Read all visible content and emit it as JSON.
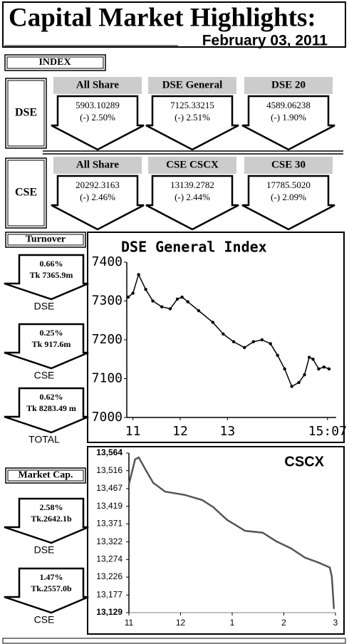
{
  "header": {
    "title": "Capital Market Highlights:",
    "date": "February 03, 2011"
  },
  "index": {
    "label": "INDEX",
    "groups": [
      {
        "label": "DSE",
        "items": [
          {
            "name": "All Share",
            "value": "5903.10289",
            "change": "(-) 2.50%"
          },
          {
            "name": "DSE General",
            "value": "7125.33215",
            "change": "(-) 2.51%"
          },
          {
            "name": "DSE 20",
            "value": "4589.06238",
            "change": "(-) 1.90%"
          }
        ]
      },
      {
        "label": "CSE",
        "items": [
          {
            "name": "All Share",
            "value": "20292.3163",
            "change": "(-) 2.46%"
          },
          {
            "name": "CSE CSCX",
            "value": "13139.2782",
            "change": "(-) 2.44%"
          },
          {
            "name": "CSE 30",
            "value": "17785.5020",
            "change": "(-) 2.09%"
          }
        ]
      }
    ]
  },
  "turnover": {
    "label": "Turnover",
    "items": [
      {
        "change": "0.66%",
        "amount": "Tk 7365.9m",
        "market": "DSE"
      },
      {
        "change": "0.25%",
        "amount": "Tk 917.6m",
        "market": "CSE"
      },
      {
        "change": "0.62%",
        "amount": "Tk 8283.49 m",
        "market": "TOTAL"
      }
    ]
  },
  "market_cap": {
    "label": "Market Cap.",
    "items": [
      {
        "change": "2.58%",
        "amount": "Tk.2642.1b",
        "market": "DSE"
      },
      {
        "change": "1.47%",
        "amount": "Tk.2557.0b",
        "market": "CSE"
      }
    ]
  },
  "chart_data": [
    {
      "type": "line",
      "title": "DSE General Index",
      "markers": true,
      "color": "#000000",
      "x": [
        10.9,
        11.0,
        11.12,
        11.27,
        11.42,
        11.61,
        11.79,
        11.94,
        12.04,
        12.16,
        12.39,
        12.69,
        12.91,
        13.13,
        13.36,
        13.55,
        13.73,
        13.91,
        14.06,
        14.21,
        14.36,
        14.51,
        14.63,
        14.73,
        14.81,
        14.93,
        15.04,
        15.15
      ],
      "values": [
        7310,
        7320,
        7368,
        7330,
        7300,
        7285,
        7280,
        7305,
        7310,
        7298,
        7275,
        7245,
        7215,
        7195,
        7180,
        7195,
        7200,
        7190,
        7160,
        7125,
        7080,
        7090,
        7110,
        7155,
        7150,
        7125,
        7130,
        7125
      ],
      "xlim": [
        10.87,
        15.3
      ],
      "xticks": [
        11,
        12,
        13,
        {
          "value": 15.117,
          "label": "15:07"
        }
      ],
      "ylim": [
        7000,
        7400
      ],
      "yticks": [
        7000,
        7100,
        7200,
        7300,
        7400
      ]
    },
    {
      "type": "line",
      "title": "CSCX",
      "markers": false,
      "color": "#555555",
      "x": [
        11.0,
        11.12,
        11.19,
        11.33,
        11.47,
        11.7,
        12.08,
        12.42,
        12.63,
        12.9,
        13.25,
        13.59,
        13.86,
        14.14,
        14.41,
        14.68,
        14.89,
        14.93,
        14.97
      ],
      "values": [
        13479,
        13547,
        13552,
        13517,
        13483,
        13459,
        13450,
        13436,
        13417,
        13382,
        13352,
        13347,
        13323,
        13304,
        13279,
        13265,
        13252,
        13227,
        13139
      ],
      "xlim": [
        11,
        15
      ],
      "xticks": [
        11,
        12,
        {
          "value": 13,
          "label": "1"
        },
        {
          "value": 14,
          "label": "2"
        },
        {
          "value": 15,
          "label": "3"
        }
      ],
      "ylim": [
        13129,
        13564
      ],
      "yticks": [
        {
          "value": 13129,
          "label": "13,129"
        },
        {
          "value": 13177,
          "label": "13,177"
        },
        {
          "value": 13226,
          "label": "13,226"
        },
        {
          "value": 13274,
          "label": "13,274"
        },
        {
          "value": 13322,
          "label": "13,322"
        },
        {
          "value": 13371,
          "label": "13,371"
        },
        {
          "value": 13419,
          "label": "13,419"
        },
        {
          "value": 13467,
          "label": "13,467"
        },
        {
          "value": 13516,
          "label": "13,516"
        },
        {
          "value": 13564,
          "label": "13,564"
        }
      ]
    }
  ]
}
